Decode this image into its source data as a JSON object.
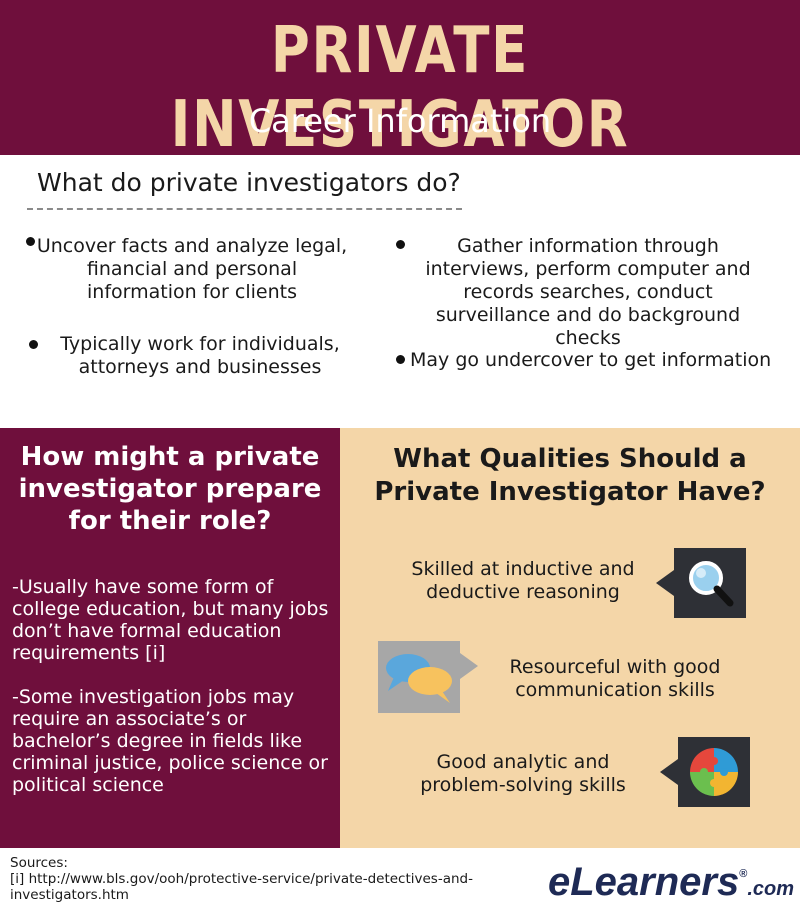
{
  "header": {
    "title": "PRIVATE INVESTIGATOR",
    "subtitle": "Career Information"
  },
  "what_section": {
    "heading": "What do private investigators do?",
    "bullets": [
      "Uncover facts and analyze legal, financial and personal information for clients",
      "Gather information through interviews, perform computer and records searches, conduct surveillance and do background checks",
      "Typically work for individuals, attorneys and businesses",
      "May go undercover to get information"
    ]
  },
  "prepare_section": {
    "heading": "How might a private investigator prepare for their role?",
    "paragraphs": [
      "-Usually have some form of college education, but many jobs don’t have formal education requirements [i]",
      "-Some investigation jobs may require an associate’s or bachelor’s degree in fields like criminal justice, police science or political science"
    ]
  },
  "qualities_section": {
    "heading": "What Qualities Should a Private Investigator Have?",
    "items": [
      {
        "text": "Skilled at inductive and deductive reasoning",
        "icon": "magnifier-icon"
      },
      {
        "text": "Resourceful with good communication skills",
        "icon": "chat-bubbles-icon"
      },
      {
        "text": "Good analytic and problem-solving skills",
        "icon": "puzzle-icon"
      }
    ]
  },
  "footer": {
    "sources_label": "Sources:",
    "source_1": "[i] http://www.bls.gov/ooh/protective-service/private-detectives-and-investigators.htm",
    "logo_e": "e",
    "logo_learners": "Learners",
    "logo_reg": "®",
    "logo_com": ".com"
  },
  "colors": {
    "maroon": "#6f0f3c",
    "tan": "#f4d6a8",
    "dark_icon_bg": "#2e3036",
    "logo_blue": "#1e2a55"
  }
}
